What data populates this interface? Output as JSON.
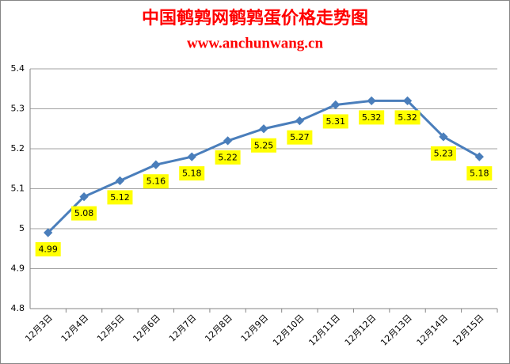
{
  "chart_data": {
    "type": "line",
    "title": "中国鹌鹑网鹌鹑蛋价格走势图",
    "subtitle": "www.anchunwang.cn",
    "categories": [
      "12月3日",
      "12月4日",
      "12月5日",
      "12月6日",
      "12月7日",
      "12月8日",
      "12月9日",
      "12月10日",
      "12月11日",
      "12月12日",
      "12月13日",
      "12月14日",
      "12月15日"
    ],
    "values": [
      4.99,
      5.08,
      5.12,
      5.16,
      5.18,
      5.22,
      5.25,
      5.27,
      5.31,
      5.32,
      5.32,
      5.23,
      5.18
    ],
    "color": "#4a7ebb",
    "label_color": "#ffff00",
    "ylim": [
      4.8,
      5.4
    ],
    "yticks": [
      4.8,
      4.9,
      5,
      5.1,
      5.2,
      5.3,
      5.4
    ],
    "grid": true
  }
}
